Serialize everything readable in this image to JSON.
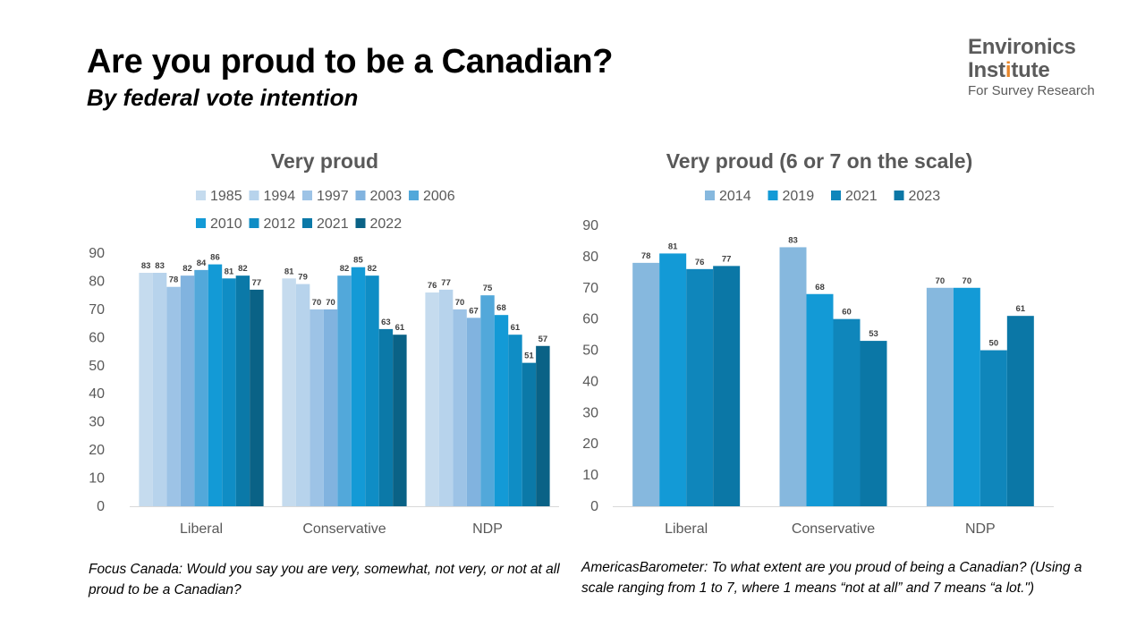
{
  "page": {
    "title": "Are you proud to be a Canadian?",
    "subtitle": "By federal vote intention"
  },
  "logo": {
    "line1": "Environics",
    "line2_pre": "Inst",
    "line2_accent": "i",
    "line2_post": "tute",
    "line3": "For Survey Research"
  },
  "notes": {
    "left": "Focus Canada: Would you say you are very, somewhat, not very, or not at all proud to be a Canadian?",
    "right": "AmericasBarometer: To what extent are you proud of being a Canadian? (Using a scale ranging from 1 to 7, where 1 means “not at all” and 7 means “a lot.\")"
  },
  "chart_data": [
    {
      "type": "bar",
      "title": "Very proud",
      "categories": [
        "Liberal",
        "Conservative",
        "NDP"
      ],
      "ylim": [
        0,
        90
      ],
      "yticks": [
        0,
        10,
        20,
        30,
        40,
        50,
        60,
        70,
        80,
        90
      ],
      "grid": false,
      "legend_position": "top",
      "series": [
        {
          "name": "1985",
          "color": "#c5dbee",
          "values": [
            83,
            81,
            76
          ]
        },
        {
          "name": "1994",
          "color": "#b7d3ec",
          "values": [
            83,
            79,
            77
          ]
        },
        {
          "name": "1997",
          "color": "#9dc3e6",
          "values": [
            78,
            70,
            70
          ]
        },
        {
          "name": "2003",
          "color": "#81b3df",
          "values": [
            82,
            70,
            67
          ]
        },
        {
          "name": "2006",
          "color": "#52a8da",
          "values": [
            84,
            82,
            75
          ]
        },
        {
          "name": "2010",
          "color": "#139ad6",
          "values": [
            86,
            85,
            68
          ]
        },
        {
          "name": "2012",
          "color": "#0f8dc5",
          "values": [
            81,
            82,
            61
          ]
        },
        {
          "name": "2021",
          "color": "#0b79a8",
          "values": [
            82,
            63,
            51
          ]
        },
        {
          "name": "2022",
          "color": "#0a6286",
          "values": [
            77,
            61,
            57
          ]
        }
      ]
    },
    {
      "type": "bar",
      "title": "Very proud (6 or 7 on the scale)",
      "categories": [
        "Liberal",
        "Conservative",
        "NDP"
      ],
      "ylim": [
        0,
        90
      ],
      "yticks": [
        0,
        10,
        20,
        30,
        40,
        50,
        60,
        70,
        80,
        90
      ],
      "grid": false,
      "legend_position": "top",
      "series": [
        {
          "name": "2014",
          "color": "#86b8de",
          "values": [
            78,
            83,
            70
          ]
        },
        {
          "name": "2019",
          "color": "#139ad6",
          "values": [
            81,
            68,
            70
          ]
        },
        {
          "name": "2021",
          "color": "#0f86bb",
          "values": [
            76,
            60,
            50
          ]
        },
        {
          "name": "2023",
          "color": "#0b77a6",
          "values": [
            77,
            53,
            61
          ]
        }
      ]
    }
  ]
}
